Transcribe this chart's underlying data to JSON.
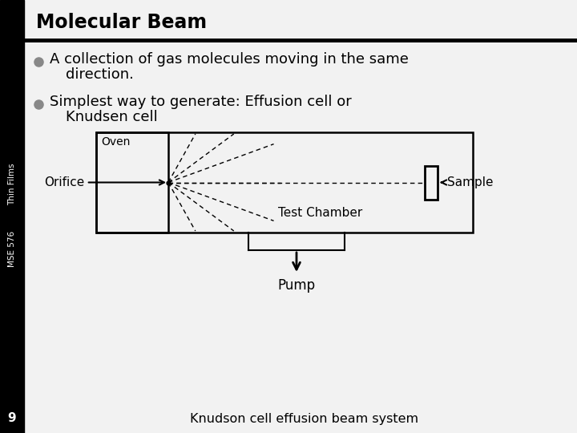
{
  "title": "Molecular Beam",
  "bullet1_line1": "A collection of gas molecules moving in the same",
  "bullet1_line2": "direction.",
  "bullet2_line1": "Simplest way to generate: Effusion cell or",
  "bullet2_line2": "Knudsen cell",
  "label_oven": "Oven",
  "label_orifice": "Orifice",
  "label_sample": "Sample",
  "label_test_chamber": "Test Chamber",
  "label_pump": "Pump",
  "label_caption": "Knudson cell effusion beam system",
  "label_slide_number": "9",
  "label_side_text_top": "Thin Films",
  "label_side_text_bot": "MSE 576",
  "main_bg": "#f2f2f2",
  "sidebar_color": "#000000",
  "title_color": "#000000",
  "body_color": "#000000",
  "bullet_color": "#888888"
}
